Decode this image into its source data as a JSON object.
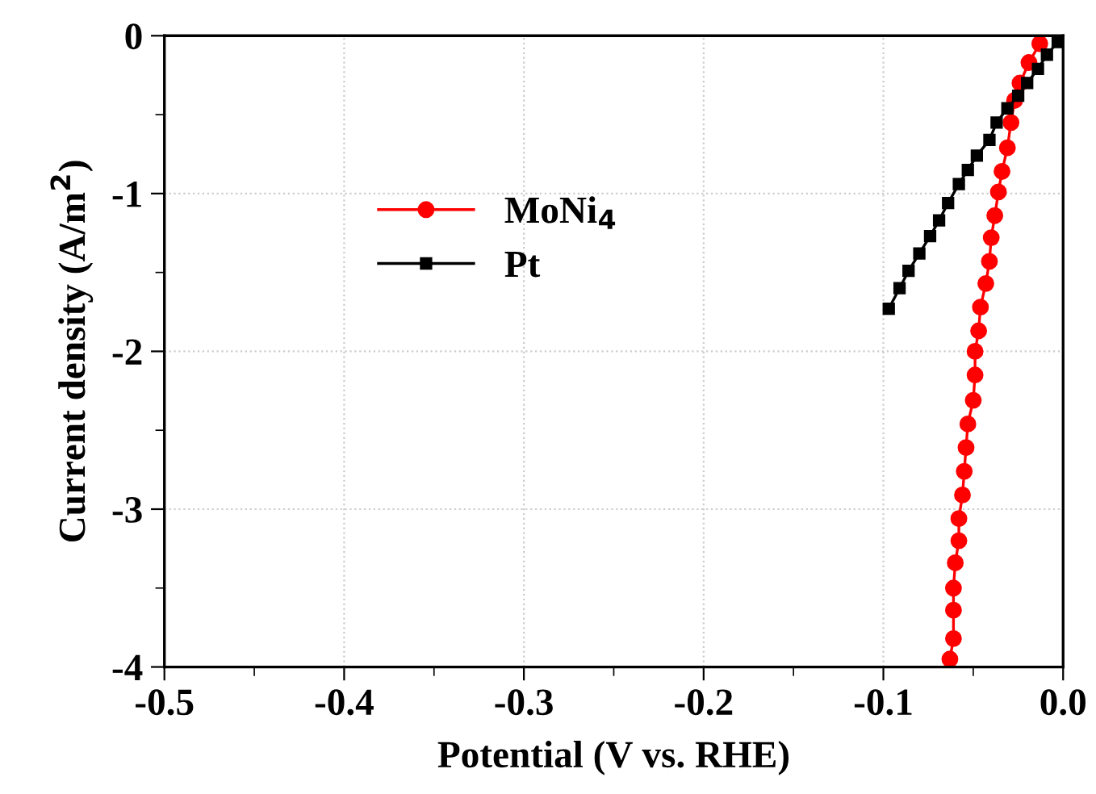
{
  "chart_data": {
    "type": "line",
    "xlabel": "Potential (V vs. RHE)",
    "ylabel": "Current density (A/m$^{2}$)",
    "xlim": [
      -0.5,
      0.0
    ],
    "ylim": [
      -4,
      0
    ],
    "xticks": [
      -0.5,
      {
        "value": -0.45,
        "label": null
      },
      -0.4,
      {
        "value": -0.35,
        "label": null
      },
      -0.3,
      {
        "value": -0.25,
        "label": null
      },
      -0.2,
      {
        "value": -0.15,
        "label": null
      },
      -0.1,
      {
        "value": -0.05,
        "label": null
      },
      {
        "value": 0.0,
        "label": "0.0"
      }
    ],
    "yticks": [
      -4,
      {
        "value": -3.5,
        "label": null
      },
      -3,
      {
        "value": -2.5,
        "label": null
      },
      -2,
      {
        "value": -1.5,
        "label": null
      },
      -1,
      {
        "value": -0.5,
        "label": null
      },
      0
    ],
    "grid": true,
    "legend": "upper left",
    "line_style": "solid",
    "series": [
      {
        "name": "MoNi$_{4}$",
        "color": "#ff0000",
        "marker": "circle",
        "x": [
          -0.013,
          -0.019,
          -0.024,
          -0.027,
          -0.029,
          -0.031,
          -0.034,
          -0.036,
          -0.038,
          -0.04,
          -0.041,
          -0.043,
          -0.046,
          -0.047,
          -0.049,
          -0.049,
          -0.05,
          -0.053,
          -0.054,
          -0.055,
          -0.056,
          -0.058,
          -0.058,
          -0.06,
          -0.061,
          -0.061,
          -0.061,
          -0.063
        ],
        "values": [
          -0.05,
          -0.17,
          -0.3,
          -0.41,
          -0.55,
          -0.71,
          -0.86,
          -0.99,
          -1.14,
          -1.28,
          -1.43,
          -1.57,
          -1.72,
          -1.87,
          -2.0,
          -2.15,
          -2.31,
          -2.46,
          -2.61,
          -2.76,
          -2.91,
          -3.06,
          -3.2,
          -3.34,
          -3.5,
          -3.64,
          -3.82,
          -3.95
        ]
      },
      {
        "name": "Pt",
        "color": "#000000",
        "marker": "square",
        "x": [
          -0.003,
          -0.009,
          -0.014,
          -0.02,
          -0.025,
          -0.031,
          -0.037,
          -0.041,
          -0.048,
          -0.053,
          -0.058,
          -0.064,
          -0.069,
          -0.074,
          -0.08,
          -0.086,
          -0.091,
          -0.097
        ],
        "values": [
          -0.04,
          -0.12,
          -0.21,
          -0.3,
          -0.38,
          -0.46,
          -0.55,
          -0.66,
          -0.76,
          -0.85,
          -0.94,
          -1.06,
          -1.17,
          -1.27,
          -1.38,
          -1.49,
          -1.6,
          -1.73
        ]
      }
    ]
  }
}
